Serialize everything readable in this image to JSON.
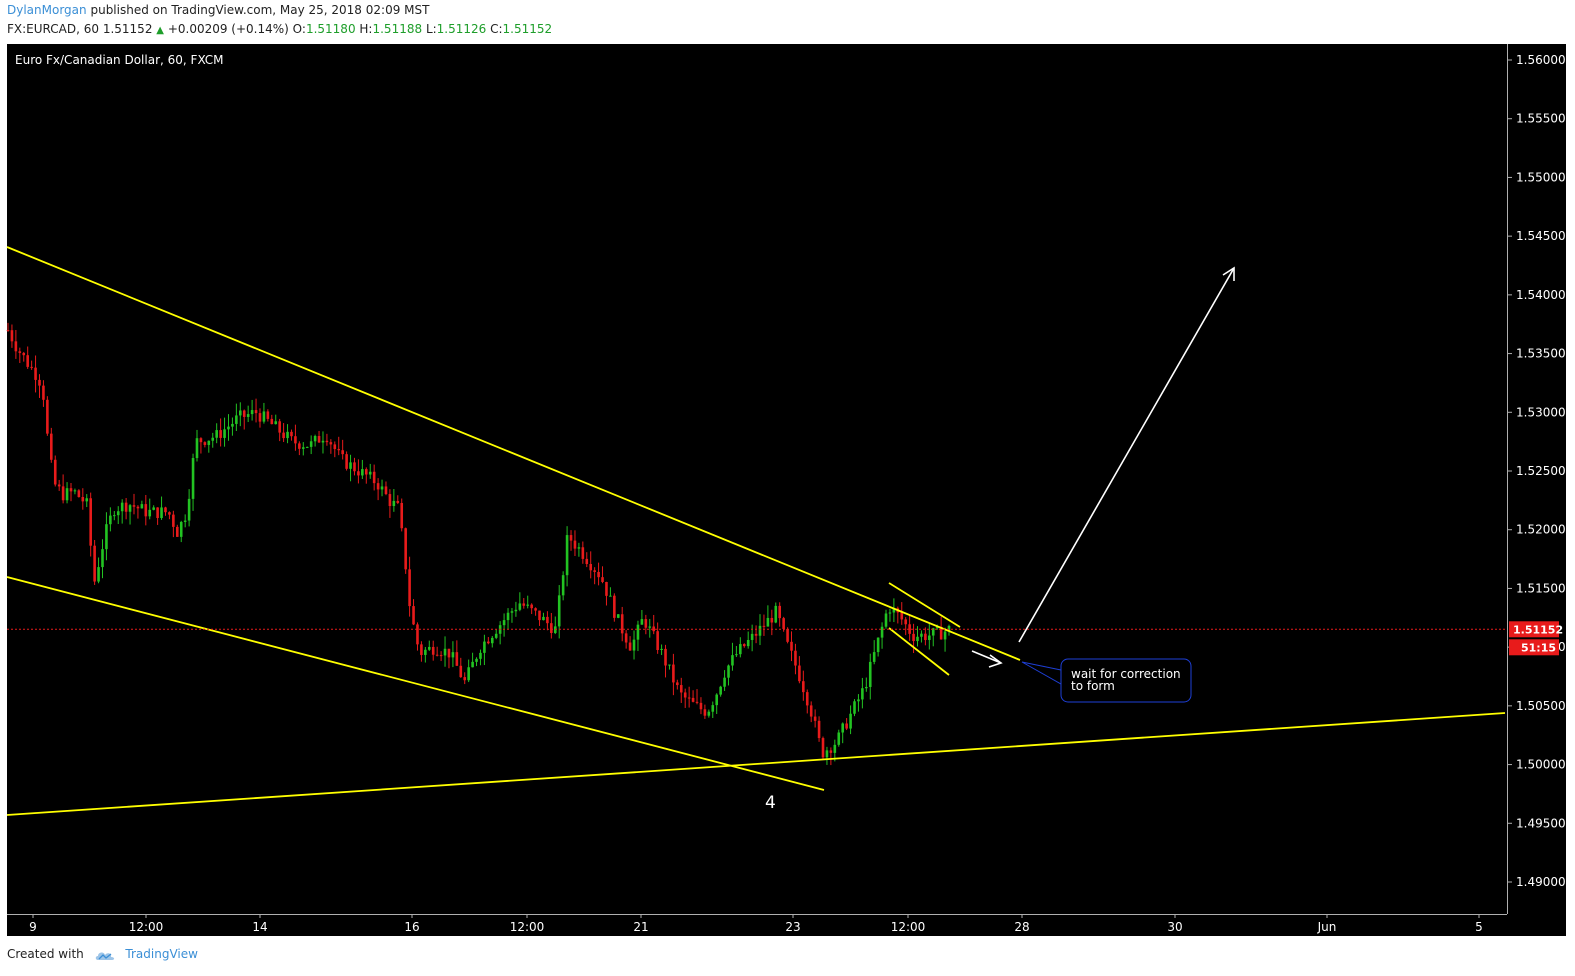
{
  "header": {
    "author": "DylanMorgan",
    "published_text": "published on TradingView.com, May 25, 2018 02:09 MST",
    "symbol": "FX:EURCAD, 60",
    "last": "1.51152",
    "change_arrow": "▲",
    "change": "+0.00209 (+0.14%)",
    "open_label": "O:",
    "open": "1.51180",
    "high_label": "H:",
    "high": "1.51188",
    "low_label": "L:",
    "low": "1.51126",
    "close_label": "C:",
    "close": "1.51152"
  },
  "footer": {
    "created_with": "Created with",
    "brand": "TradingView",
    "logo_icon": "tradingview-cloud-icon"
  },
  "chart_data": {
    "type": "candlestick",
    "title": "Euro Fx/Canadian Dollar, 60, FXCM",
    "colors": {
      "background": "#000000",
      "up": "#22c322",
      "down": "#e81b1b",
      "trendline": "#ffff00",
      "annotation": "#ffffff",
      "price_line": "#e81b1b",
      "callout_border": "#1e3fd6"
    },
    "y_axis": {
      "ticks": [
        "1.56000",
        "1.55500",
        "1.55000",
        "1.54500",
        "1.54000",
        "1.53500",
        "1.53000",
        "1.52500",
        "1.52000",
        "1.51500",
        "1.51000",
        "1.50500",
        "1.50000",
        "1.49500",
        "1.49000"
      ],
      "ylim": [
        1.488,
        1.562
      ]
    },
    "x_axis": {
      "ticks": [
        "9",
        "12:00",
        "14",
        "16",
        "12:00",
        "21",
        "23",
        "12:00",
        "28",
        "30",
        "Jun",
        "5"
      ]
    },
    "last_price_label": "1.51152",
    "countdown_label": "51:15",
    "annotations": {
      "wave_label": "4",
      "callout_text_line1": "wait for correction",
      "callout_text_line2": "to form"
    },
    "price_path": [
      [
        0,
        1.537
      ],
      [
        6,
        1.5355
      ],
      [
        14,
        1.534
      ],
      [
        20,
        1.533
      ],
      [
        23,
        1.532
      ],
      [
        26,
        1.528
      ],
      [
        30,
        1.524
      ],
      [
        36,
        1.523
      ],
      [
        44,
        1.5232
      ],
      [
        52,
        1.5222
      ],
      [
        57,
        1.5155
      ],
      [
        64,
        1.5195
      ],
      [
        70,
        1.5218
      ],
      [
        80,
        1.5222
      ],
      [
        92,
        1.5215
      ],
      [
        106,
        1.5215
      ],
      [
        112,
        1.5198
      ],
      [
        118,
        1.5215
      ],
      [
        124,
        1.5275
      ],
      [
        138,
        1.528
      ],
      [
        152,
        1.5295
      ],
      [
        164,
        1.53
      ],
      [
        174,
        1.529
      ],
      [
        188,
        1.5275
      ],
      [
        200,
        1.5272
      ],
      [
        210,
        1.5282
      ],
      [
        220,
        1.526
      ],
      [
        232,
        1.525
      ],
      [
        244,
        1.524
      ],
      [
        252,
        1.5225
      ],
      [
        258,
        1.5218
      ],
      [
        262,
        1.518
      ],
      [
        266,
        1.513
      ],
      [
        272,
        1.5095
      ],
      [
        282,
        1.51
      ],
      [
        292,
        1.5095
      ],
      [
        302,
        1.507
      ],
      [
        312,
        1.51
      ],
      [
        322,
        1.5115
      ],
      [
        338,
        1.5138
      ],
      [
        352,
        1.5125
      ],
      [
        362,
        1.5115
      ],
      [
        370,
        1.5195
      ],
      [
        380,
        1.518
      ],
      [
        392,
        1.516
      ],
      [
        404,
        1.512
      ],
      [
        412,
        1.51
      ],
      [
        420,
        1.5125
      ],
      [
        432,
        1.5095
      ],
      [
        444,
        1.506
      ],
      [
        454,
        1.505
      ],
      [
        462,
        1.5045
      ],
      [
        468,
        1.506
      ],
      [
        474,
        1.508
      ],
      [
        482,
        1.5095
      ],
      [
        492,
        1.5108
      ],
      [
        502,
        1.5122
      ],
      [
        508,
        1.513
      ],
      [
        514,
        1.5105
      ],
      [
        522,
        1.508
      ],
      [
        530,
        1.505
      ],
      [
        538,
        1.501
      ],
      [
        548,
        1.502
      ],
      [
        558,
        1.5045
      ],
      [
        566,
        1.5065
      ],
      [
        574,
        1.51
      ],
      [
        582,
        1.5135
      ],
      [
        590,
        1.5125
      ],
      [
        598,
        1.511
      ],
      [
        608,
        1.511
      ],
      [
        616,
        1.5112
      ],
      [
        622,
        1.5115
      ]
    ],
    "trendlines": [
      {
        "name": "upper-channel-line",
        "p1": [
          "start",
          1.544
        ],
        "p2": [
          "23",
          1.5138
        ]
      },
      {
        "name": "lower-channel-line",
        "p1": [
          "start",
          1.516
        ],
        "p2": [
          "23+",
          1.4978
        ]
      },
      {
        "name": "rising-support-line",
        "p1": [
          "start",
          1.4957
        ],
        "p2": [
          "end",
          1.5043
        ]
      },
      {
        "name": "correction-upper-line",
        "p1": [
          "25",
          1.5154
        ],
        "p2": [
          "27.5",
          1.5088
        ]
      },
      {
        "name": "correction-lower-line",
        "p1": [
          "25",
          1.5102
        ],
        "p2": [
          "26.5",
          1.5075
        ]
      }
    ]
  }
}
